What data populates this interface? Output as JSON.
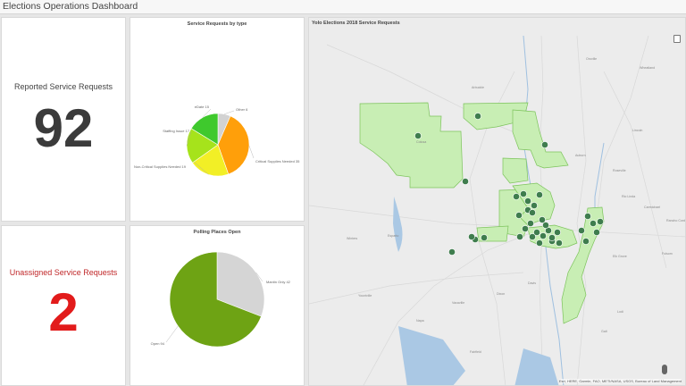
{
  "header": {
    "title": "Elections Operations Dashboard"
  },
  "reported": {
    "label": "Reported Service Requests",
    "value": "92"
  },
  "unassigned": {
    "label": "Unassigned Service Requests",
    "value": "2"
  },
  "colors": {
    "reported_value": "#3b3b3b",
    "unassigned_value": "#e21b1b",
    "unassigned_label": "#c0282a",
    "county_fill": "#c8eeb4",
    "county_stroke": "#7cc35b",
    "marker": "#3f7d4e"
  },
  "chart_data": [
    {
      "type": "pie",
      "title": "Service Requests by type",
      "slices": [
        {
          "label": "Other 6",
          "value": 6,
          "color": "#d2d2d2"
        },
        {
          "label": "Critical Supplies Needed 35",
          "value": 35,
          "color": "#ff9f0a"
        },
        {
          "label": "Non-Critical Supplies Needed 19",
          "value": 19,
          "color": "#f2ef26"
        },
        {
          "label": "Staffing Issue 17",
          "value": 17,
          "color": "#a6e31b"
        },
        {
          "label": "eDate 15",
          "value": 15,
          "color": "#3fc92d"
        }
      ]
    },
    {
      "type": "pie",
      "title": "Polling Places Open",
      "slices": [
        {
          "label": "Mantin Only 42",
          "value": 42,
          "color": "#d5d5d5"
        },
        {
          "label": "Open 94",
          "value": 94,
          "color": "#6ea314"
        }
      ]
    }
  ],
  "map": {
    "title": "Yolo Elections 2018 Service Requests",
    "attribution": "Esri, HERE, Garmin, FAO, METI/NASA, USGS, Bureau of Land Management",
    "towns": [
      "Oroville",
      "Wheatland",
      "Arbuckle",
      "Lincoln",
      "Auburn",
      "Colusa",
      "Roseville",
      "Rio Linda",
      "Carmichael",
      "Rancho Cordova",
      "Davis",
      "Dixon",
      "Vacaville",
      "Fairfield",
      "Elk Grove",
      "Winters",
      "Esparto",
      "Yountville",
      "Napa",
      "Galt",
      "Lodi",
      "Folsom"
    ]
  }
}
